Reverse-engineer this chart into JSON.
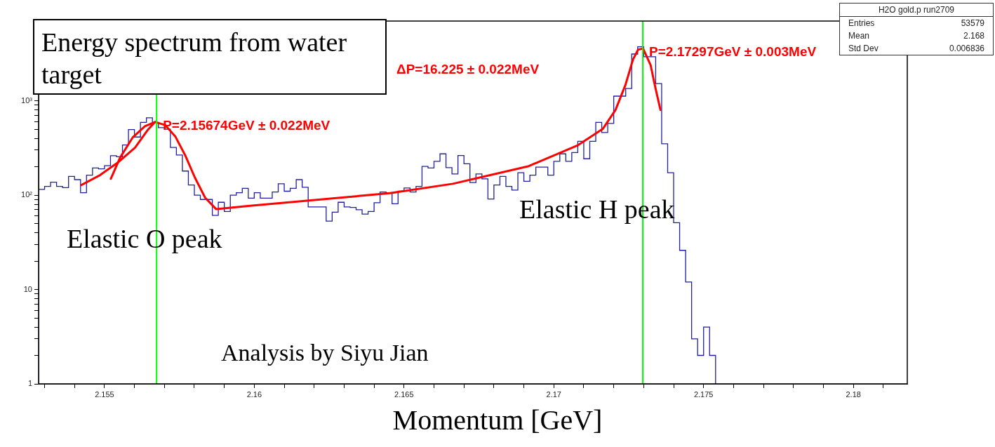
{
  "chart_data": {
    "type": "histogram",
    "title": "Energy spectrum from water target",
    "xlabel": "Momentum [GeV]",
    "bins": [
      2.1528,
      2.153,
      2.1532,
      2.1534,
      2.1536,
      2.1538,
      2.154,
      2.1542,
      2.1544,
      2.1546,
      2.1548,
      2.155,
      2.1552,
      2.1554,
      2.1556,
      2.1558,
      2.156,
      2.1562,
      2.1564,
      2.1566,
      2.1568,
      2.157,
      2.1572,
      2.1574,
      2.1576,
      2.1578,
      2.158,
      2.1582,
      2.1584,
      2.1586,
      2.1588,
      2.159,
      2.1592,
      2.1594,
      2.1596,
      2.1598,
      2.16,
      2.1602,
      2.1604,
      2.1606,
      2.1608,
      2.161,
      2.1612,
      2.1614,
      2.1616,
      2.1618,
      2.162,
      2.1622,
      2.1624,
      2.1626,
      2.1628,
      2.163,
      2.1632,
      2.1634,
      2.1636,
      2.1638,
      2.164,
      2.1642,
      2.1644,
      2.1646,
      2.1648,
      2.165,
      2.1652,
      2.1654,
      2.1656,
      2.1658,
      2.166,
      2.1662,
      2.1664,
      2.1666,
      2.1668,
      2.167,
      2.1672,
      2.1674,
      2.1676,
      2.1678,
      2.168,
      2.1682,
      2.1684,
      2.1686,
      2.1688,
      2.169,
      2.1692,
      2.1694,
      2.1696,
      2.1698,
      2.17,
      2.1702,
      2.1704,
      2.1706,
      2.1708,
      2.171,
      2.1712,
      2.1714,
      2.1716,
      2.1718,
      2.172,
      2.1722,
      2.1724,
      2.1726,
      2.1728,
      2.173,
      2.1732,
      2.1734,
      2.1736,
      2.1738,
      2.174,
      2.1742,
      2.1744,
      2.1746,
      2.1748,
      2.175,
      2.1752,
      2.1754
    ],
    "values": [
      115,
      124,
      137,
      124,
      120,
      158,
      146,
      106,
      163,
      194,
      190,
      205,
      262,
      255,
      340,
      495,
      413,
      590,
      660,
      590,
      520,
      500,
      320,
      266,
      180,
      128,
      100,
      90,
      90,
      61,
      84,
      67,
      100,
      106,
      118,
      93,
      106,
      93,
      93,
      108,
      132,
      110,
      118,
      146,
      121,
      75,
      75,
      75,
      53,
      66,
      84,
      75,
      74,
      70,
      63,
      67,
      83,
      108,
      106,
      81,
      110,
      119,
      108,
      124,
      202,
      194,
      228,
      274,
      196,
      168,
      263,
      215,
      136,
      168,
      149,
      91,
      128,
      158,
      124,
      113,
      173,
      140,
      163,
      198,
      198,
      163,
      228,
      274,
      228,
      283,
      372,
      243,
      372,
      590,
      460,
      575,
      1120,
      1120,
      1350,
      3130,
      3740,
      2930,
      2930,
      1520,
      350,
      173,
      51,
      26,
      12,
      3,
      2,
      4,
      2
    ],
    "color": "#2020a0",
    "series": [
      {
        "type": "line",
        "color": "#ff0000",
        "x": [
          2.15423,
          2.15485,
          2.15544,
          2.15602,
          2.15644,
          2.15669
        ],
        "values": [
          128,
          163,
          221,
          319,
          490,
          596
        ]
      },
      {
        "type": "line",
        "color": "#ff0000",
        "x": [
          2.15521,
          2.15552,
          2.15594,
          2.15635,
          2.15669,
          2.15702,
          2.15736,
          2.15769,
          2.15802,
          2.15836,
          2.15873,
          2.15986,
          2.16453,
          2.16663,
          2.16914,
          2.17081,
          2.17164,
          2.17206,
          2.17239,
          2.17264,
          2.17281,
          2.17298,
          2.17323,
          2.17339,
          2.17356
        ],
        "values": [
          149,
          250,
          408,
          537,
          596,
          554,
          421,
          266,
          153,
          94,
          71,
          77,
          105,
          132,
          202,
          339,
          506,
          800,
          1470,
          2720,
          3480,
          3580,
          2400,
          1380,
          800
        ]
      }
    ],
    "log": true,
    "xlim": [
      2.1528,
      2.1818
    ],
    "xticks": [
      {
        "value": 2.153,
        "label": null
      },
      {
        "value": 2.154,
        "label": null
      },
      2.155,
      {
        "value": 2.156,
        "label": null
      },
      {
        "value": 2.157,
        "label": null
      },
      {
        "value": 2.158,
        "label": null
      },
      {
        "value": 2.159,
        "label": null
      },
      2.16,
      {
        "value": 2.161,
        "label": null
      },
      {
        "value": 2.162,
        "label": null
      },
      {
        "value": 2.163,
        "label": null
      },
      {
        "value": 2.164,
        "label": null
      },
      2.165,
      {
        "value": 2.166,
        "label": null
      },
      {
        "value": 2.167,
        "label": null
      },
      {
        "value": 2.168,
        "label": null
      },
      {
        "value": 2.169,
        "label": null
      },
      2.17,
      {
        "value": 2.171,
        "label": null
      },
      {
        "value": 2.172,
        "label": null
      },
      {
        "value": 2.173,
        "label": null
      },
      {
        "value": 2.174,
        "label": null
      },
      2.175,
      {
        "value": 2.176,
        "label": null
      },
      {
        "value": 2.177,
        "label": null
      },
      {
        "value": 2.178,
        "label": null
      },
      {
        "value": 2.179,
        "label": null
      },
      2.18,
      {
        "value": 2.181,
        "label": null
      }
    ],
    "ylim": [
      1,
      7000
    ],
    "yticks": [
      1,
      {
        "value": 2,
        "label": null
      },
      {
        "value": 3,
        "label": null
      },
      {
        "value": 4,
        "label": null
      },
      {
        "value": 5,
        "label": null
      },
      {
        "value": 6,
        "label": null
      },
      {
        "value": 7,
        "label": null
      },
      {
        "value": 8,
        "label": null
      },
      {
        "value": 9,
        "label": null
      },
      10,
      {
        "value": 20,
        "label": null
      },
      {
        "value": 30,
        "label": null
      },
      {
        "value": 40,
        "label": null
      },
      {
        "value": 50,
        "label": null
      },
      {
        "value": 60,
        "label": null
      },
      {
        "value": 70,
        "label": null
      },
      {
        "value": 80,
        "label": null
      },
      {
        "value": 90,
        "label": null
      },
      {
        "value": 100,
        "label": "10²"
      },
      {
        "value": 200,
        "label": null
      },
      {
        "value": 300,
        "label": null
      },
      {
        "value": 400,
        "label": null
      },
      {
        "value": 500,
        "label": null
      },
      {
        "value": 600,
        "label": null
      },
      {
        "value": 700,
        "label": null
      },
      {
        "value": 800,
        "label": null
      },
      {
        "value": 900,
        "label": null
      },
      {
        "value": 1000,
        "label": "10³"
      },
      {
        "value": 2000,
        "label": null
      },
      {
        "value": 3000,
        "label": null
      },
      {
        "value": 4000,
        "label": null
      },
      {
        "value": 5000,
        "label": null
      },
      {
        "value": 6000,
        "label": null
      },
      {
        "value": 7000,
        "label": null
      }
    ],
    "ref_lines": [
      {
        "axis": "x",
        "value": 2.15674,
        "color": "#00ff00"
      },
      {
        "axis": "x",
        "value": 2.17297,
        "color": "#00ff00"
      }
    ],
    "annotations": [
      {
        "text": "P=2.15674GeV ± 0.022MeV",
        "x": 2.15674,
        "y": 596
      },
      {
        "text": "P=2.17297GeV ± 0.003MeV",
        "x": 2.17297,
        "y": 3580
      },
      "ΔP=16.225 ± 0.022MeV",
      "Elastic O peak",
      "Elastic H peak",
      "Analysis by Siyu Jian",
      "H2O gold.p run2709",
      "Entries",
      "53579",
      "Mean",
      "2.168",
      "Std Dev",
      "0.006836"
    ]
  }
}
